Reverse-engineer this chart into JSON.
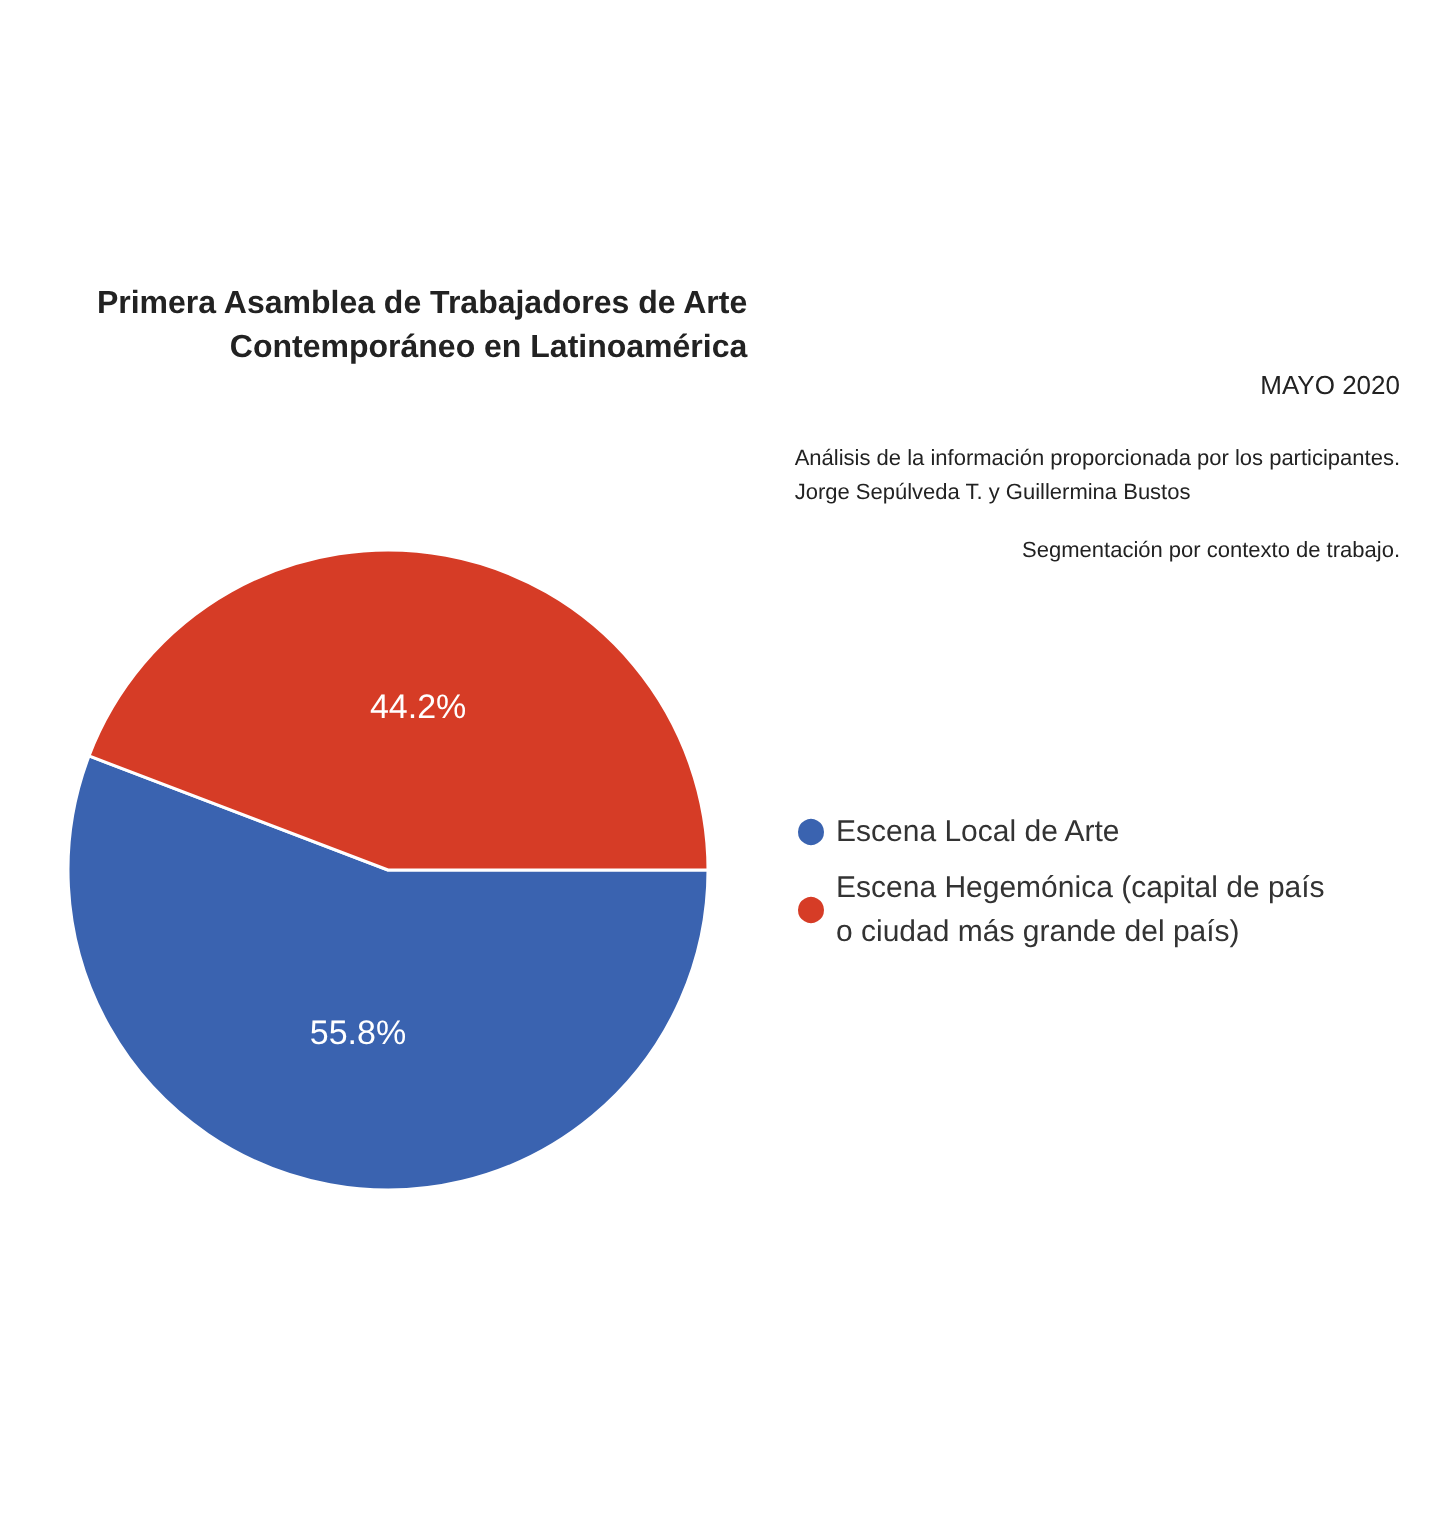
{
  "chart_data": {
    "type": "pie",
    "title": "Primera Asamblea de Trabajadores de Arte\nContemporáneo en Latinoamérica",
    "subtitle": "MAYO 2020",
    "annotations": [
      "Análisis de la información proporcionada por los participantes.\nJorge Sepúlveda T. y Guillermina Bustos",
      "Segmentación por contexto de trabajo."
    ],
    "categories": [
      "Escena Local de Arte",
      "Escena Hegemónica (capital de país o ciudad más grande del país)"
    ],
    "values": [
      55.8,
      44.2
    ],
    "colors": [
      "#3a63b0",
      "#d63c26"
    ],
    "value_labels": [
      "55.8%",
      "44.2%"
    ],
    "legend": "right"
  }
}
